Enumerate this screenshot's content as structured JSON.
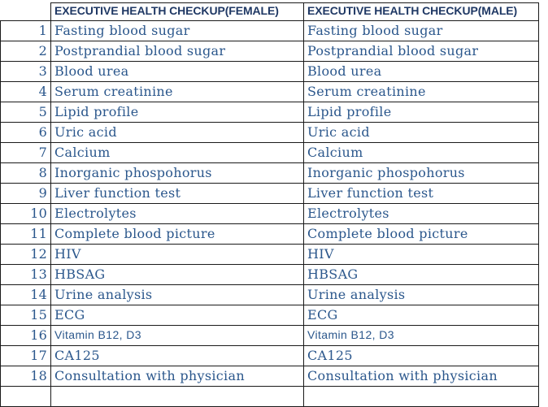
{
  "table": {
    "corner_label": "",
    "headers": {
      "female": "EXECUTIVE HEALTH CHECKUP(FEMALE)",
      "male": "EXECUTIVE HEALTH CHECKUP(MALE)"
    },
    "rows": [
      {
        "num": "1",
        "female": "Fasting blood sugar",
        "male": "Fasting blood sugar",
        "font": "serif"
      },
      {
        "num": "2",
        "female": "Postprandial blood sugar",
        "male": "Postprandial blood sugar",
        "font": "serif"
      },
      {
        "num": "3",
        "female": "Blood urea",
        "male": "Blood urea",
        "font": "serif"
      },
      {
        "num": "4",
        "female": "Serum creatinine",
        "male": "Serum creatinine",
        "font": "serif"
      },
      {
        "num": "5",
        "female": "Lipid profile",
        "male": "Lipid profile",
        "font": "serif"
      },
      {
        "num": "6",
        "female": "Uric acid",
        "male": "Uric acid",
        "font": "serif"
      },
      {
        "num": "7",
        "female": "Calcium",
        "male": "Calcium",
        "font": "serif"
      },
      {
        "num": "8",
        "female": "Inorganic phospohorus",
        "male": "Inorganic phospohorus",
        "font": "serif"
      },
      {
        "num": "9",
        "female": "Liver function test",
        "male": "Liver function test",
        "font": "serif"
      },
      {
        "num": "10",
        "female": "Electrolytes",
        "male": "Electrolytes",
        "font": "serif"
      },
      {
        "num": "11",
        "female": "Complete blood picture",
        "male": "Complete blood picture",
        "font": "serif"
      },
      {
        "num": "12",
        "female": "HIV",
        "male": "HIV",
        "font": "serif"
      },
      {
        "num": "13",
        "female": "HBSAG",
        "male": "HBSAG",
        "font": "serif"
      },
      {
        "num": "14",
        "female": "Urine analysis",
        "male": "Urine analysis",
        "font": "serif"
      },
      {
        "num": "15",
        "female": "ECG",
        "male": "ECG",
        "font": "serif"
      },
      {
        "num": "16",
        "female": "Vitamin B12, D3",
        "male": "Vitamin B12, D3",
        "font": "sans"
      },
      {
        "num": "17",
        "female": "CA125",
        "male": "CA125",
        "font": "serif"
      },
      {
        "num": "18",
        "female": "Consultation with physician",
        "male": "Consultation with physician",
        "font": "serif"
      },
      {
        "num": "",
        "female": "",
        "male": "",
        "font": "serif"
      }
    ]
  },
  "colors": {
    "header_text": "#1F3864",
    "body_text": "#2B578C",
    "border": "#1A1A1A",
    "background": "#FFFFFF"
  }
}
